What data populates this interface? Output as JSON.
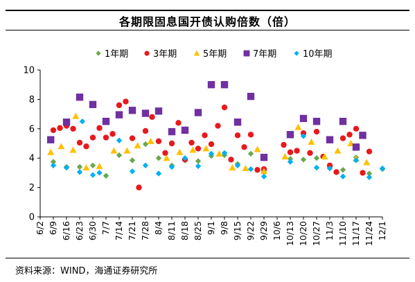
{
  "chart_data": {
    "type": "scatter",
    "title": "各期限固息国开债认购倍数（倍）",
    "source": "资料来源：WIND，海通证券研究所",
    "x_tick_labels": [
      "6/2",
      "6/9",
      "6/16",
      "6/23",
      "6/30",
      "7/7",
      "7/14",
      "7/21",
      "7/28",
      "8/4",
      "8/11",
      "8/18",
      "8/25",
      "9/1",
      "9/8",
      "9/15",
      "9/22",
      "9/29",
      "10/6",
      "10/13",
      "10/20",
      "10/27",
      "11/3",
      "11/10",
      "11/17",
      "11/24",
      "12/1"
    ],
    "ylim": [
      0,
      10
    ],
    "y_ticks": [
      "0",
      "2",
      "4",
      "6",
      "8",
      "10"
    ],
    "grid": false,
    "legend_position": "top",
    "series": [
      {
        "name": "1年期",
        "marker": "diamond",
        "color": "#6aa84f",
        "points": [
          [
            1,
            3.75
          ],
          [
            2,
            3.4
          ],
          [
            3,
            3.4
          ],
          [
            4,
            3.5
          ],
          [
            5,
            2.8
          ],
          [
            6,
            4.2
          ],
          [
            7,
            3.85
          ],
          [
            8,
            4.95
          ],
          [
            9,
            4.0
          ],
          [
            10,
            3.5
          ],
          [
            11,
            3.85
          ],
          [
            12,
            3.8
          ],
          [
            13,
            4.15
          ],
          [
            14,
            4.2
          ],
          [
            15,
            3.6
          ],
          [
            16,
            4.3
          ],
          [
            17,
            3.1
          ],
          [
            19,
            3.95
          ],
          [
            20,
            3.9
          ],
          [
            21,
            4.0
          ],
          [
            22,
            3.4
          ],
          [
            23,
            3.2
          ],
          [
            24,
            4.05
          ],
          [
            25,
            2.95
          ],
          [
            26,
            3.25
          ]
        ]
      },
      {
        "name": "3年期",
        "marker": "circle",
        "color": "#e8191d",
        "points": [
          [
            1,
            5.9
          ],
          [
            1.5,
            6.05
          ],
          [
            2,
            6.2
          ],
          [
            2.5,
            6.0
          ],
          [
            3,
            5.05
          ],
          [
            3.5,
            4.8
          ],
          [
            4,
            5.4
          ],
          [
            4.5,
            6.05
          ],
          [
            5,
            5.4
          ],
          [
            5.5,
            5.65
          ],
          [
            6,
            7.6
          ],
          [
            6.5,
            7.85
          ],
          [
            7,
            5.35
          ],
          [
            7.5,
            2.0
          ],
          [
            8,
            5.85
          ],
          [
            8.5,
            6.8
          ],
          [
            9,
            5.15
          ],
          [
            9.5,
            4.35
          ],
          [
            10,
            5.0
          ],
          [
            10.5,
            6.4
          ],
          [
            11,
            3.9
          ],
          [
            11.5,
            5.05
          ],
          [
            12,
            4.65
          ],
          [
            12.5,
            5.55
          ],
          [
            13,
            4.95
          ],
          [
            13.5,
            6.2
          ],
          [
            14,
            7.45
          ],
          [
            14.5,
            3.9
          ],
          [
            15,
            5.55
          ],
          [
            15.5,
            4.75
          ],
          [
            16,
            5.6
          ],
          [
            16.5,
            3.2
          ],
          [
            17,
            3.25
          ],
          [
            18.5,
            4.9
          ],
          [
            19,
            4.4
          ],
          [
            19.5,
            4.5
          ],
          [
            20,
            5.7
          ],
          [
            20.5,
            4.35
          ],
          [
            21,
            5.8
          ],
          [
            21.5,
            4.1
          ],
          [
            22,
            3.5
          ],
          [
            22.5,
            3.05
          ],
          [
            23,
            5.35
          ],
          [
            23.5,
            5.6
          ],
          [
            24,
            6.0
          ],
          [
            24.5,
            3.0
          ],
          [
            25,
            4.45
          ]
        ]
      },
      {
        "name": "5年期",
        "marker": "triangle",
        "color": "#ffc000",
        "points": [
          [
            0.8,
            4.4
          ],
          [
            1.6,
            4.8
          ],
          [
            2.5,
            4.55
          ],
          [
            2.7,
            6.85
          ],
          [
            3.5,
            3.35
          ],
          [
            4.5,
            3.45
          ],
          [
            5.6,
            4.5
          ],
          [
            6.6,
            4.5
          ],
          [
            7.4,
            4.85
          ],
          [
            8.4,
            5.15
          ],
          [
            9.6,
            4.0
          ],
          [
            10.6,
            4.4
          ],
          [
            11.6,
            4.55
          ],
          [
            12.6,
            4.65
          ],
          [
            13.6,
            4.3
          ],
          [
            14.6,
            3.35
          ],
          [
            15.6,
            3.3
          ],
          [
            16.5,
            4.6
          ],
          [
            17.0,
            3.1
          ],
          [
            18.6,
            4.1
          ],
          [
            19.6,
            6.1
          ],
          [
            20.6,
            5.1
          ],
          [
            21.6,
            4.1
          ],
          [
            22.6,
            4.5
          ],
          [
            23.6,
            5.0
          ],
          [
            24.0,
            3.95
          ],
          [
            24.8,
            3.7
          ]
        ]
      },
      {
        "name": "7年期",
        "marker": "square",
        "color": "#7030a0",
        "points": [
          [
            0.8,
            5.25
          ],
          [
            2.0,
            6.45
          ],
          [
            3.0,
            8.15
          ],
          [
            4.0,
            7.65
          ],
          [
            5.0,
            6.5
          ],
          [
            6.0,
            6.95
          ],
          [
            7.0,
            7.25
          ],
          [
            8.0,
            7.05
          ],
          [
            9.0,
            7.2
          ],
          [
            10.0,
            5.8
          ],
          [
            11.0,
            5.9
          ],
          [
            12.0,
            7.1
          ],
          [
            13.0,
            9.0
          ],
          [
            14.0,
            9.0
          ],
          [
            15.0,
            6.45
          ],
          [
            16.0,
            8.2
          ],
          [
            17.0,
            4.05
          ],
          [
            19.0,
            5.6
          ],
          [
            20.0,
            6.7
          ],
          [
            21.0,
            6.5
          ],
          [
            22.0,
            5.25
          ],
          [
            23.0,
            6.5
          ],
          [
            24.0,
            4.75
          ],
          [
            24.5,
            5.55
          ]
        ]
      },
      {
        "name": "10年期",
        "marker": "diamond",
        "color": "#00b0f0",
        "points": [
          [
            1,
            3.5
          ],
          [
            2,
            3.35
          ],
          [
            3,
            3.05
          ],
          [
            3.2,
            6.5
          ],
          [
            4,
            2.85
          ],
          [
            4.5,
            3.0
          ],
          [
            6,
            5.2
          ],
          [
            7,
            3.1
          ],
          [
            8,
            3.5
          ],
          [
            9,
            2.95
          ],
          [
            10,
            3.4
          ],
          [
            11,
            4.0
          ],
          [
            12,
            3.45
          ],
          [
            13,
            4.3
          ],
          [
            14,
            4.35
          ],
          [
            15,
            3.5
          ],
          [
            16,
            3.25
          ],
          [
            17,
            2.75
          ],
          [
            19,
            3.75
          ],
          [
            20,
            5.5
          ],
          [
            21,
            3.35
          ],
          [
            22,
            3.3
          ],
          [
            23,
            2.75
          ],
          [
            24,
            3.85
          ],
          [
            25,
            2.7
          ],
          [
            26,
            3.3
          ]
        ]
      }
    ]
  }
}
